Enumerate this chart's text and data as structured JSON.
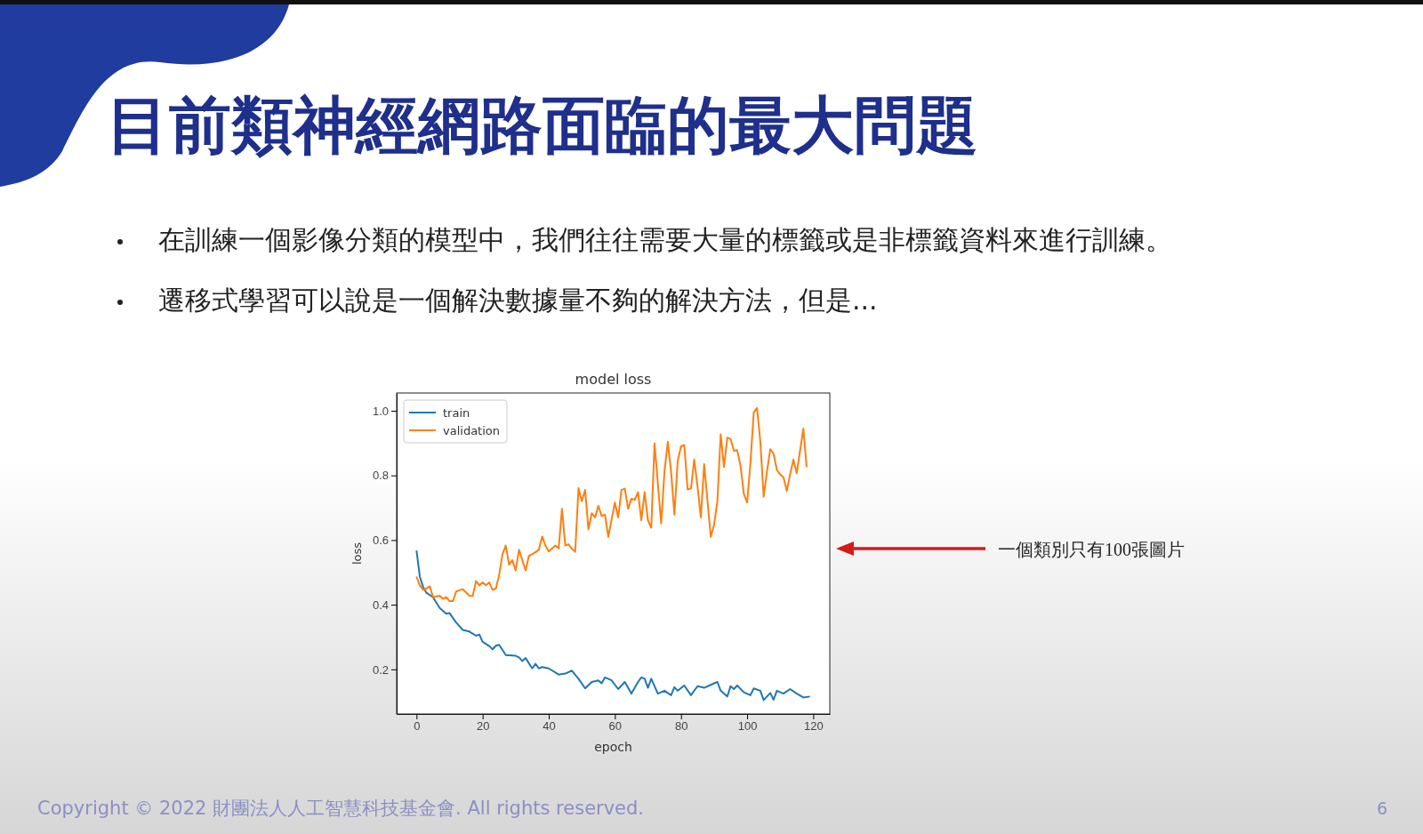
{
  "chart_data": {
    "type": "line",
    "title": "目前類神經網路面臨的最大問題",
    "subtitle": "model loss",
    "xlabel": "epoch",
    "ylabel": "loss",
    "xlim": [
      -6,
      125
    ],
    "xticks": [
      0,
      20,
      40,
      60,
      80,
      100,
      120
    ],
    "ylim": [
      0.062,
      1.055
    ],
    "yticks": [
      {
        "value": 0.2,
        "label": "0.2"
      },
      {
        "value": 0.4,
        "label": "0.4"
      },
      {
        "value": 0.6,
        "label": "0.6"
      },
      {
        "value": 0.8,
        "label": "0.8"
      },
      {
        "value": 1.0,
        "label": "1.0"
      }
    ],
    "legend": "top left",
    "grid": false,
    "line_style": "solid",
    "marker": "none",
    "series": [
      {
        "name": "train",
        "color": "#1f77b4",
        "x": [
          0,
          1,
          2,
          3,
          5,
          7,
          9,
          10,
          12,
          14,
          16,
          18,
          19,
          20,
          22,
          23,
          24,
          25,
          27,
          30,
          31,
          32,
          33,
          35,
          36,
          37,
          38,
          40,
          43,
          45,
          47,
          49,
          51,
          53,
          55,
          56,
          57,
          59,
          61,
          63,
          65,
          67,
          68,
          69,
          70,
          71,
          73,
          75,
          77,
          78,
          79,
          81,
          83,
          85,
          87,
          89,
          91,
          92,
          94,
          95,
          96,
          97,
          99,
          101,
          102,
          104,
          105,
          107,
          108,
          109,
          111,
          113,
          115,
          117,
          119
        ],
        "values": [
          0.568,
          0.487,
          0.455,
          0.437,
          0.423,
          0.39,
          0.372,
          0.374,
          0.345,
          0.322,
          0.317,
          0.304,
          0.308,
          0.285,
          0.272,
          0.262,
          0.273,
          0.276,
          0.244,
          0.242,
          0.237,
          0.226,
          0.235,
          0.203,
          0.217,
          0.203,
          0.207,
          0.203,
          0.184,
          0.187,
          0.196,
          0.171,
          0.141,
          0.161,
          0.166,
          0.157,
          0.175,
          0.166,
          0.139,
          0.161,
          0.125,
          0.161,
          0.175,
          0.171,
          0.143,
          0.171,
          0.125,
          0.134,
          0.12,
          0.145,
          0.134,
          0.15,
          0.12,
          0.148,
          0.143,
          0.152,
          0.161,
          0.134,
          0.116,
          0.148,
          0.139,
          0.15,
          0.129,
          0.12,
          0.141,
          0.134,
          0.105,
          0.127,
          0.106,
          0.134,
          0.125,
          0.139,
          0.125,
          0.113,
          0.116
        ]
      },
      {
        "name": "validation",
        "color": "#ff7f0e",
        "x": [
          0,
          1,
          2,
          3,
          4,
          5,
          7,
          8,
          9,
          10,
          11,
          12,
          14,
          16,
          17,
          18,
          19,
          20,
          21,
          22,
          23,
          24,
          25,
          26,
          27,
          28,
          29,
          30,
          31,
          33,
          34,
          35,
          37,
          38,
          39,
          40,
          42,
          43,
          44,
          45,
          46,
          47,
          48,
          49,
          50,
          51,
          52,
          53,
          54,
          55,
          56,
          57,
          58,
          60,
          61,
          62,
          63,
          64,
          65,
          66,
          67,
          68,
          69,
          70,
          71,
          72,
          74,
          75,
          76,
          77,
          78,
          79,
          80,
          81,
          82,
          83,
          84,
          85,
          86,
          87,
          89,
          90,
          91,
          92,
          93,
          94,
          95,
          96,
          97,
          98,
          99,
          100,
          101,
          102,
          103,
          104,
          105,
          106,
          107,
          108,
          109,
          110,
          111,
          112,
          113,
          114,
          115,
          117,
          118
        ],
        "values": [
          0.487,
          0.46,
          0.446,
          0.45,
          0.457,
          0.423,
          0.428,
          0.418,
          0.423,
          0.411,
          0.411,
          0.441,
          0.448,
          0.428,
          0.427,
          0.473,
          0.46,
          0.469,
          0.46,
          0.469,
          0.446,
          0.45,
          0.492,
          0.556,
          0.583,
          0.524,
          0.538,
          0.506,
          0.57,
          0.506,
          0.551,
          0.556,
          0.57,
          0.611,
          0.583,
          0.565,
          0.583,
          0.574,
          0.697,
          0.583,
          0.587,
          0.573,
          0.564,
          0.761,
          0.72,
          0.755,
          0.633,
          0.683,
          0.67,
          0.706,
          0.674,
          0.679,
          0.61,
          0.716,
          0.67,
          0.755,
          0.759,
          0.697,
          0.728,
          0.725,
          0.748,
          0.661,
          0.748,
          0.661,
          0.638,
          0.899,
          0.651,
          0.812,
          0.904,
          0.812,
          0.679,
          0.844,
          0.89,
          0.894,
          0.757,
          0.759,
          0.849,
          0.766,
          0.67,
          0.835,
          0.61,
          0.647,
          0.72,
          0.927,
          0.826,
          0.917,
          0.913,
          0.876,
          0.878,
          0.83,
          0.743,
          0.716,
          0.839,
          0.995,
          1.009,
          0.904,
          0.734,
          0.812,
          0.881,
          0.867,
          0.817,
          0.803,
          0.794,
          0.752,
          0.803,
          0.849,
          0.807,
          0.945,
          0.826
        ]
      }
    ],
    "annotations": [
      "在訓練一個影像分類的模型中，我們往往需要大量的標籤或是非標籤資料來進行訓練。",
      "遷移式學習可以說是一個解決數據量不夠的解決方法，但是...",
      "一個類別只有100張圖片",
      "Copyright © 2022 財團法人人工智慧科技基金會. All rights reserved.",
      "6"
    ]
  }
}
